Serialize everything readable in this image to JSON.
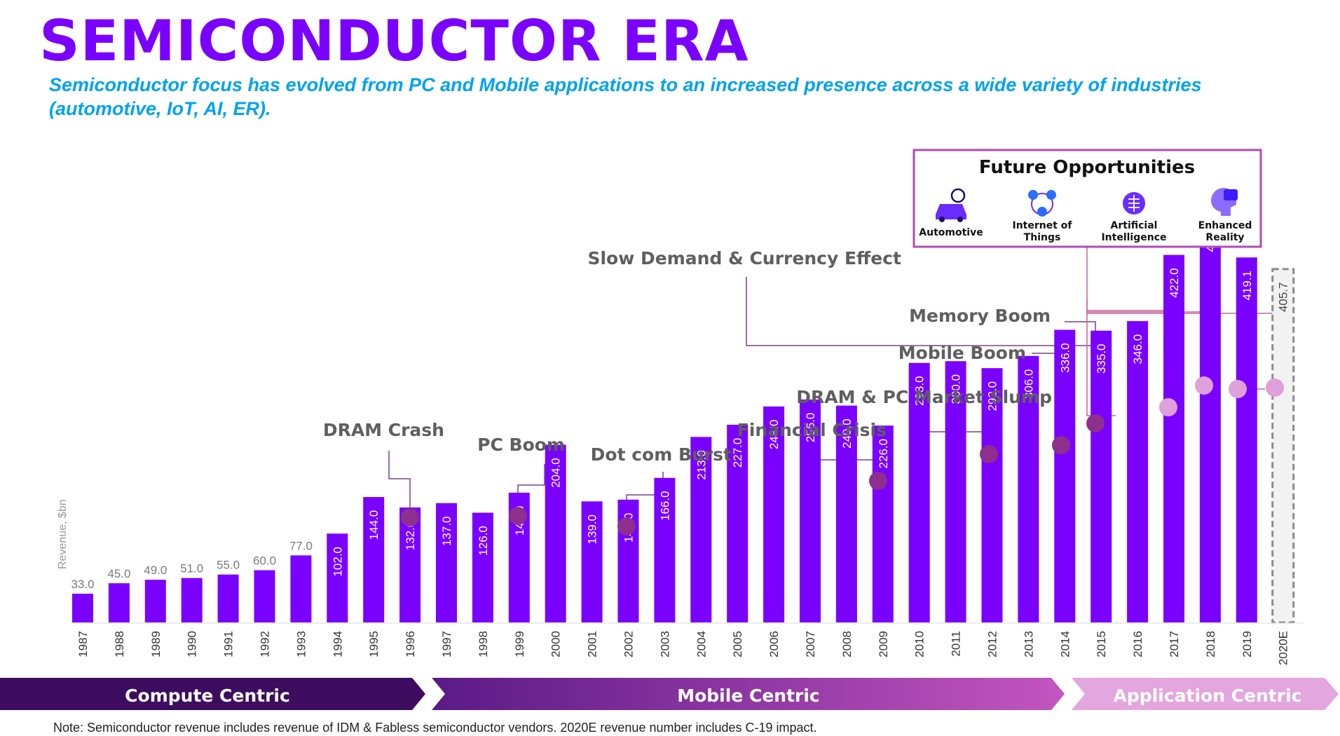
{
  "header": {
    "title": "SEMICONDUCTOR ERA",
    "subtitle": "Semiconductor focus has evolved from PC and Mobile applications to an increased presence across a wide variety of industries (automotive, IoT, AI, ER)."
  },
  "footnote": "Note: Semiconductor revenue includes revenue of IDM & Fabless semiconductor vendors. 2020E revenue number includes C-19 impact.",
  "colors": {
    "bar": "#7a00ff",
    "estimate_outline": "#8c8c8c",
    "marker_dark": "#8e2f8e",
    "marker_light": "#e0a0dc",
    "connector_dark": "#7a3f8f",
    "connector_light": "#c8609f",
    "era_compute": "#3d0c5e",
    "era_mobile": "#a743b8",
    "era_application": "#e4a6de",
    "box_border": "#b24bb0"
  },
  "chart_data": {
    "type": "bar",
    "ylabel": "Revenue, $bn",
    "ylim": [
      0,
      500
    ],
    "categories": [
      "1987",
      "1988",
      "1989",
      "1990",
      "1991",
      "1992",
      "1993",
      "1994",
      "1995",
      "1996",
      "1997",
      "1998",
      "1999",
      "2000",
      "2001",
      "2002",
      "2003",
      "2004",
      "2005",
      "2006",
      "2007",
      "2008",
      "2009",
      "2010",
      "2011",
      "2012",
      "2013",
      "2014",
      "2015",
      "2016",
      "2017",
      "2018",
      "2019",
      "2020E"
    ],
    "values": [
      33.0,
      45.0,
      49.0,
      51.0,
      55.0,
      60.0,
      77.0,
      102.0,
      144.0,
      132.0,
      137.0,
      126.0,
      149.0,
      204.0,
      139.0,
      141.0,
      166.0,
      213.0,
      227.0,
      248.0,
      256.0,
      249.0,
      226.0,
      298.0,
      300.0,
      292.0,
      306.0,
      336.0,
      335.0,
      346.0,
      422.0,
      474.6,
      419.1,
      405.7
    ],
    "value_labels": [
      "33.0",
      "45.0",
      "49.0",
      "51.0",
      "55.0",
      "60.0",
      "77.0",
      "102.0",
      "144.0",
      "132.0",
      "137.0",
      "126.0",
      "149.0",
      "204.0",
      "139.0",
      "141.0",
      "166.0",
      "213.0",
      "227.0",
      "248.0",
      "256.0",
      "249.0",
      "226.0",
      "298.0",
      "300.0",
      "292.0",
      "306.0",
      "336.0",
      "335.0",
      "346.0",
      "422.0",
      "474.6",
      "419.1",
      "405.7"
    ],
    "estimate_categories": [
      "2020E"
    ],
    "annotations": [
      {
        "label": "DRAM Crash",
        "year": "1996"
      },
      {
        "label": "PC Boom",
        "year": "1999"
      },
      {
        "label": "Dot com Burst",
        "year": "2002"
      },
      {
        "label": "Financial Crisis",
        "year": "2009"
      },
      {
        "label": "DRAM & PC Market Slump",
        "year": "2012"
      },
      {
        "label": "Mobile Boom",
        "year": "2014"
      },
      {
        "label": "Memory Boom",
        "year": "2015"
      },
      {
        "label": "Slow Demand & Currency Effect",
        "year": "2015"
      }
    ],
    "eras": [
      "Compute Centric",
      "Mobile Centric",
      "Application Centric"
    ]
  },
  "future_opportunities": {
    "title": "Future Opportunities",
    "items": [
      {
        "icon": "car-icon",
        "label": [
          "Automotive"
        ]
      },
      {
        "icon": "iot-network-icon",
        "label": [
          "Internet of",
          "Things"
        ]
      },
      {
        "icon": "brain-chip-icon",
        "label": [
          "Artificial",
          "Intelligence"
        ]
      },
      {
        "icon": "vr-headset-icon",
        "label": [
          "Enhanced",
          "Reality"
        ]
      }
    ]
  }
}
